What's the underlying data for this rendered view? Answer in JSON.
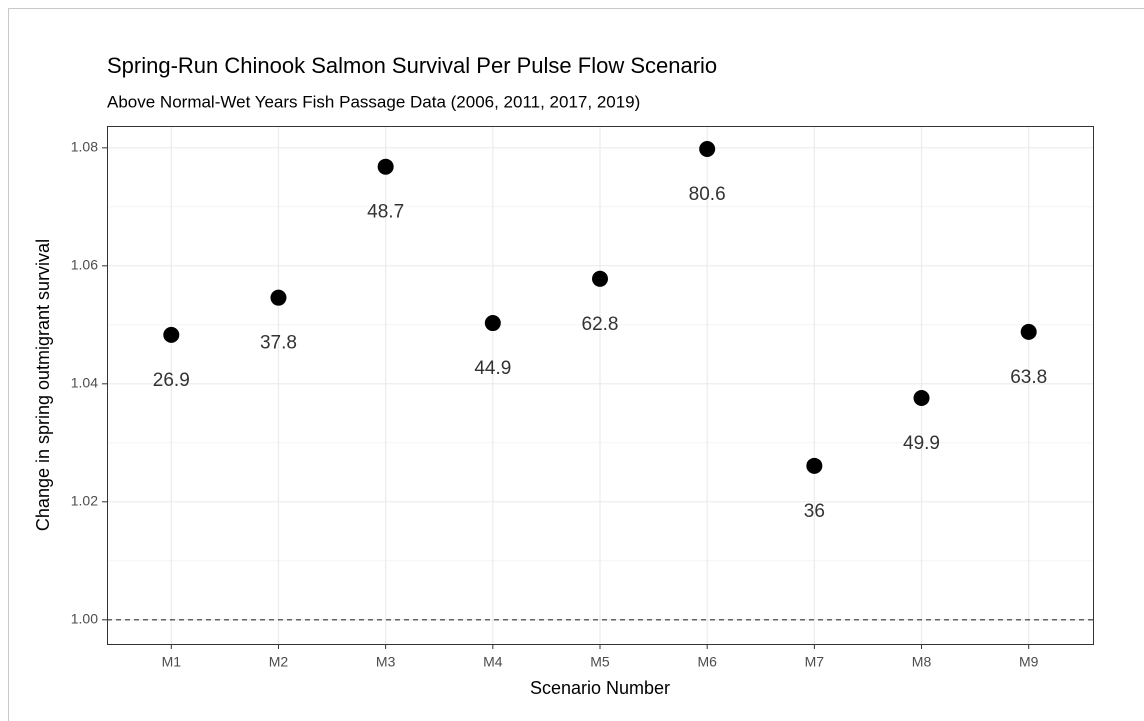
{
  "chart_data": {
    "type": "scatter",
    "title": "Spring-Run Chinook Salmon Survival Per Pulse Flow Scenario",
    "subtitle": "Above Normal-Wet Years Fish Passage Data (2006, 2011, 2017, 2019)",
    "x_label": "Scenario Number",
    "y_label": "Change in spring outmigrant survival",
    "categories": [
      "M1",
      "M2",
      "M3",
      "M4",
      "M5",
      "M6",
      "M7",
      "M8",
      "M9"
    ],
    "values": [
      1.0483,
      1.0546,
      1.0768,
      1.0503,
      1.0578,
      1.0798,
      1.0261,
      1.0376,
      1.0488
    ],
    "annotations": [
      26.9,
      37.8,
      48.7,
      44.9,
      62.8,
      80.6,
      36,
      49.9,
      63.8
    ],
    "color": "#000000",
    "ylim": [
      0.9959,
      1.0837
    ],
    "yticks": [
      {
        "value": 1,
        "label": "1.00"
      },
      1.02,
      1.04,
      1.06,
      1.08
    ],
    "minor_yticks": [
      1.01,
      1.03,
      1.05,
      1.07
    ],
    "reference_line": 1,
    "grid": true
  }
}
